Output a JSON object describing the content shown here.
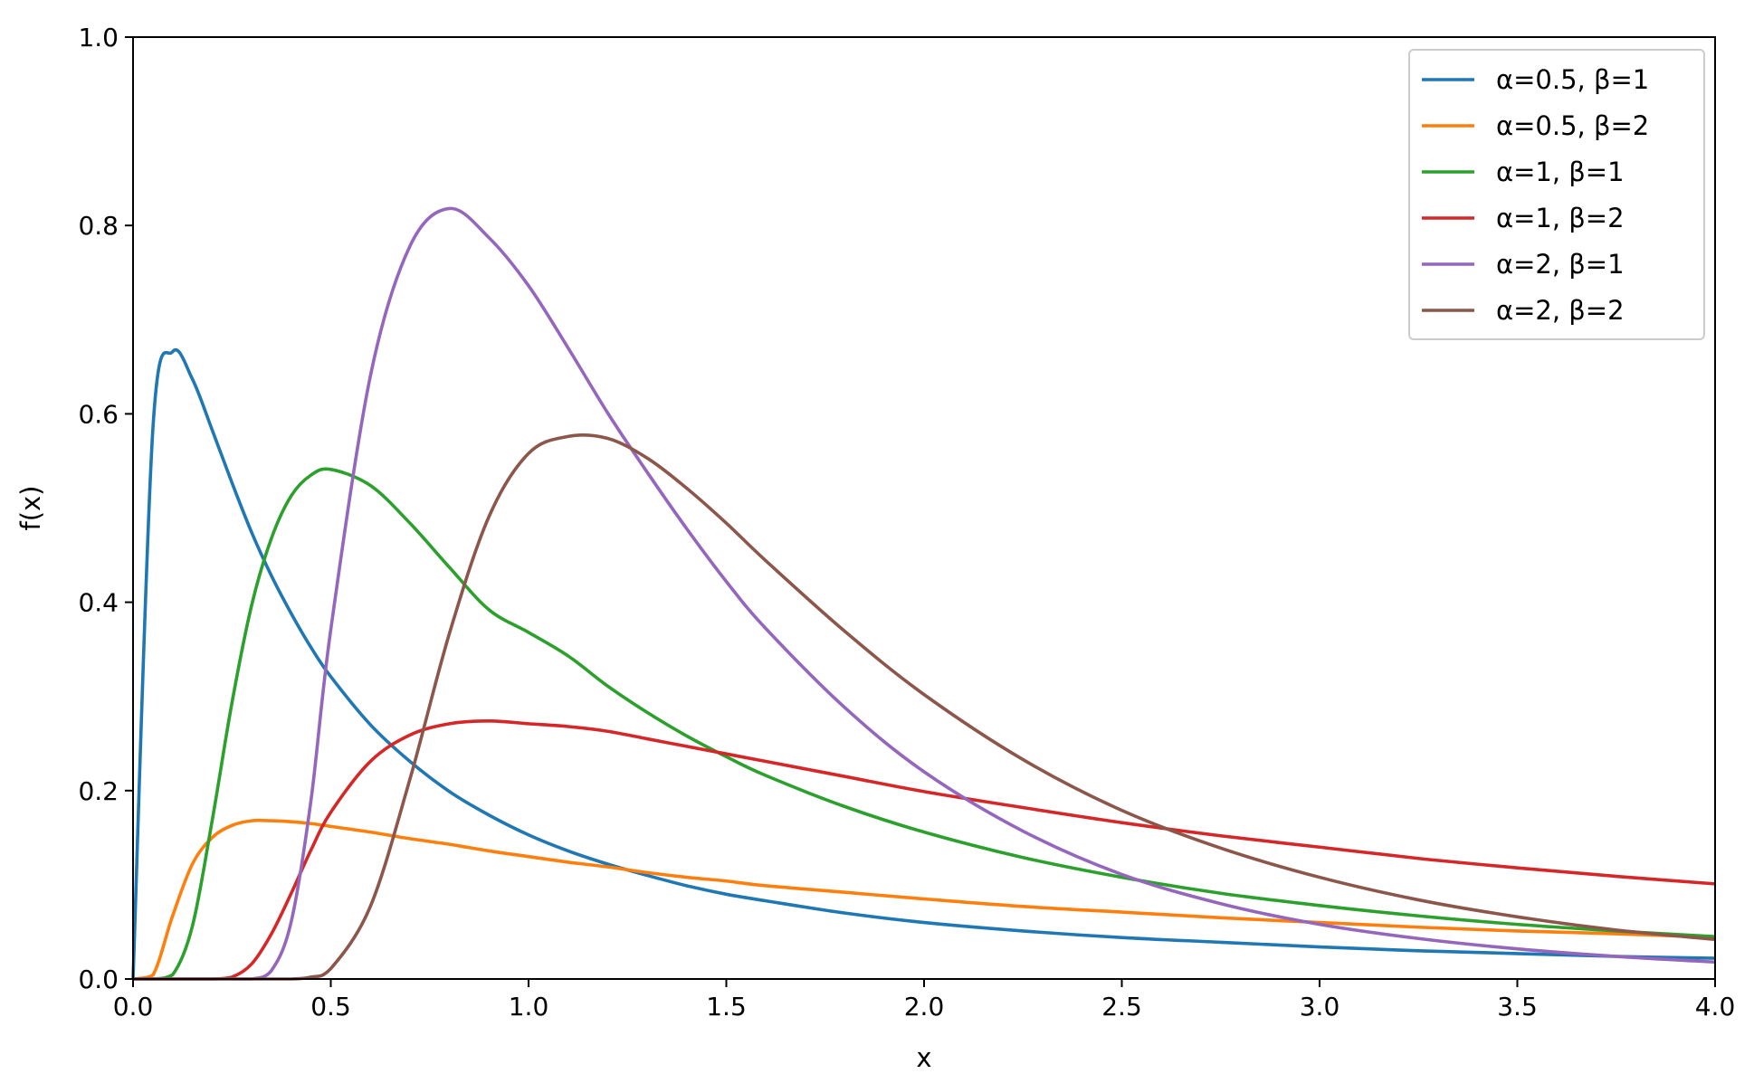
{
  "chart_data": {
    "type": "line",
    "title": "",
    "xlabel": "x",
    "ylabel": "f(x)",
    "xlim": [
      0.0,
      4.0
    ],
    "ylim": [
      0.0,
      1.0
    ],
    "xticks": [
      "0.0",
      "0.5",
      "1.0",
      "1.5",
      "2.0",
      "2.5",
      "3.0",
      "3.5",
      "4.0"
    ],
    "yticks": [
      "0.0",
      "0.2",
      "0.4",
      "0.6",
      "0.8",
      "1.0"
    ],
    "grid": false,
    "legend_position": "top-right",
    "x": [
      0.0,
      0.05,
      0.1,
      0.15,
      0.2,
      0.25,
      0.3,
      0.35,
      0.4,
      0.45,
      0.5,
      0.6,
      0.7,
      0.8,
      0.9,
      1.0,
      1.1,
      1.2,
      1.3,
      1.4,
      1.5,
      1.6,
      1.8,
      2.0,
      2.25,
      2.5,
      2.75,
      3.0,
      3.25,
      3.5,
      3.75,
      4.0
    ],
    "series": [
      {
        "name": "α=0.5, β=1",
        "color": "#1f77b4",
        "values": [
          0.0,
          0.583,
          0.666,
          0.637,
          0.583,
          0.527,
          0.474,
          0.428,
          0.388,
          0.352,
          0.321,
          0.27,
          0.231,
          0.199,
          0.174,
          0.153,
          0.136,
          0.122,
          0.11,
          0.099,
          0.09,
          0.083,
          0.07,
          0.06,
          0.051,
          0.044,
          0.039,
          0.034,
          0.03,
          0.027,
          0.024,
          0.022
        ]
      },
      {
        "name": "α=0.5, β=2",
        "color": "#ff7f0e",
        "values": [
          0.0,
          0.004,
          0.067,
          0.122,
          0.15,
          0.163,
          0.168,
          0.168,
          0.167,
          0.165,
          0.162,
          0.156,
          0.149,
          0.143,
          0.136,
          0.13,
          0.124,
          0.119,
          0.113,
          0.108,
          0.104,
          0.099,
          0.092,
          0.085,
          0.077,
          0.071,
          0.065,
          0.06,
          0.055,
          0.051,
          0.048,
          0.044
        ]
      },
      {
        "name": "α=1, β=1",
        "color": "#2ca02c",
        "values": [
          0.0,
          0.0,
          0.0045,
          0.056,
          0.168,
          0.293,
          0.397,
          0.468,
          0.513,
          0.535,
          0.541,
          0.524,
          0.484,
          0.437,
          0.392,
          0.368,
          0.343,
          0.311,
          0.283,
          0.258,
          0.236,
          0.216,
          0.183,
          0.156,
          0.129,
          0.108,
          0.091,
          0.078,
          0.067,
          0.058,
          0.051,
          0.045
        ]
      },
      {
        "name": "α=1, β=2",
        "color": "#d62728",
        "values": [
          0.0,
          0.0,
          0.0,
          0.0,
          0.0,
          0.002,
          0.016,
          0.048,
          0.091,
          0.137,
          0.177,
          0.231,
          0.259,
          0.271,
          0.274,
          0.271,
          0.268,
          0.263,
          0.255,
          0.247,
          0.239,
          0.231,
          0.215,
          0.199,
          0.182,
          0.166,
          0.152,
          0.14,
          0.128,
          0.118,
          0.109,
          0.101
        ]
      },
      {
        "name": "α=2, β=1",
        "color": "#9467bd",
        "values": [
          0.0,
          0.0,
          0.0,
          0.0,
          0.0,
          0.0,
          0.0,
          0.009,
          0.061,
          0.19,
          0.371,
          0.64,
          0.778,
          0.818,
          0.787,
          0.736,
          0.67,
          0.601,
          0.538,
          0.478,
          0.422,
          0.372,
          0.288,
          0.22,
          0.157,
          0.111,
          0.08,
          0.058,
          0.043,
          0.032,
          0.024,
          0.018
        ]
      },
      {
        "name": "α=2, β=2",
        "color": "#8c564b",
        "values": [
          0.0,
          0.0,
          0.0,
          0.0,
          0.0,
          0.0,
          0.0,
          0.0,
          0.0,
          0.002,
          0.011,
          0.077,
          0.212,
          0.367,
          0.491,
          0.558,
          0.576,
          0.574,
          0.553,
          0.521,
          0.484,
          0.444,
          0.369,
          0.302,
          0.233,
          0.179,
          0.139,
          0.108,
          0.084,
          0.066,
          0.052,
          0.042
        ]
      }
    ]
  }
}
